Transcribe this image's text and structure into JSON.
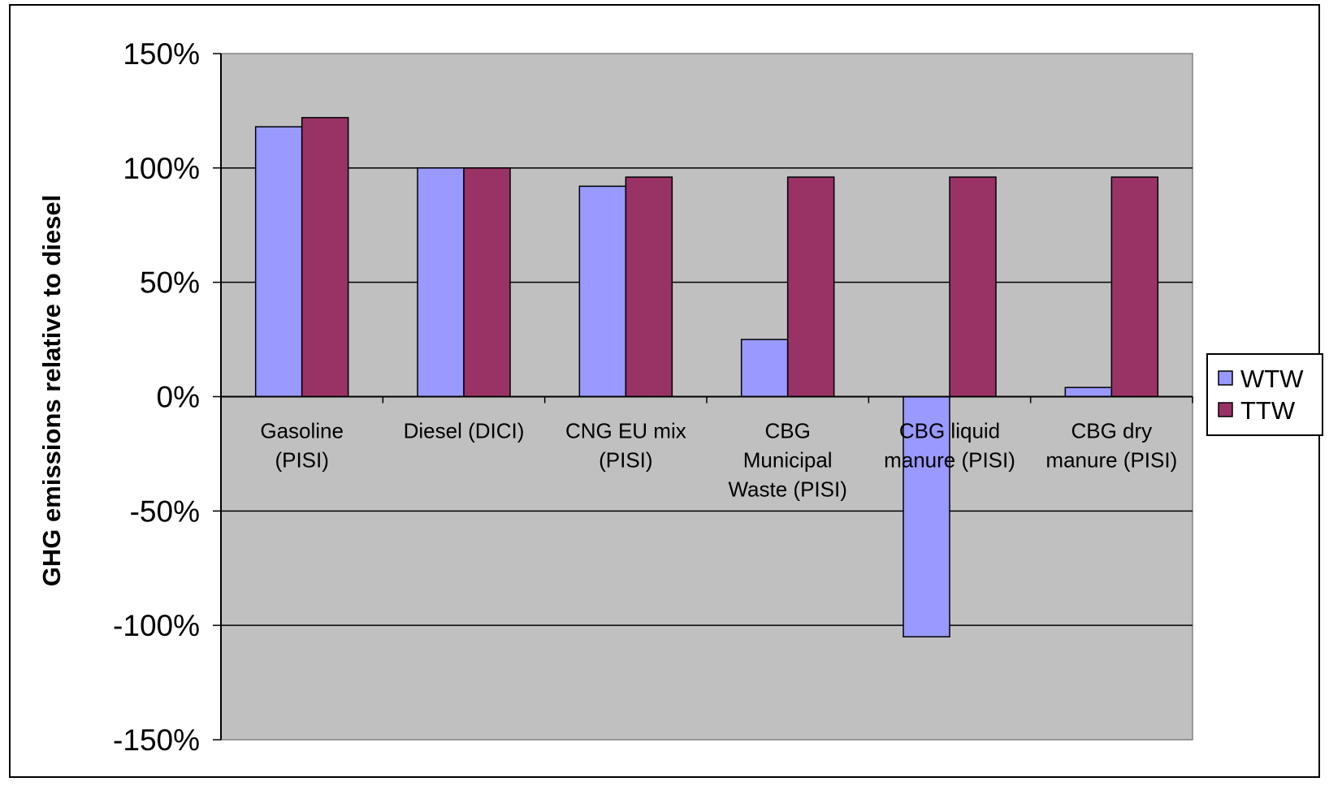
{
  "chart_data": {
    "type": "bar",
    "title": "",
    "xlabel": "",
    "ylabel": "GHG emissions relative to diesel",
    "ylim": [
      -150,
      150
    ],
    "y_ticks": [
      150,
      100,
      50,
      0,
      -50,
      -100,
      -150
    ],
    "y_tick_labels": [
      "150%",
      "100%",
      "50%",
      "0%",
      "-50%",
      "-100%",
      "-150%"
    ],
    "grid": true,
    "legend_position": "right",
    "categories": [
      [
        "Gasoline",
        "(PISI)"
      ],
      [
        "Diesel (DICI)"
      ],
      [
        "CNG EU mix",
        "(PISI)"
      ],
      [
        "CBG",
        "Municipal",
        "Waste (PISI)"
      ],
      [
        "CBG liquid",
        "manure (PISI)"
      ],
      [
        "CBG dry",
        "manure (PISI)"
      ]
    ],
    "series": [
      {
        "name": "WTW",
        "color": "#9999ff",
        "values": [
          118,
          100,
          92,
          25,
          -105,
          4
        ]
      },
      {
        "name": "TTW",
        "color": "#993366",
        "values": [
          122,
          100,
          96,
          96,
          96,
          96
        ]
      }
    ],
    "colors": {
      "plot_background": "#c0c0c0",
      "grid": "#000000",
      "frame": "#000000"
    }
  }
}
